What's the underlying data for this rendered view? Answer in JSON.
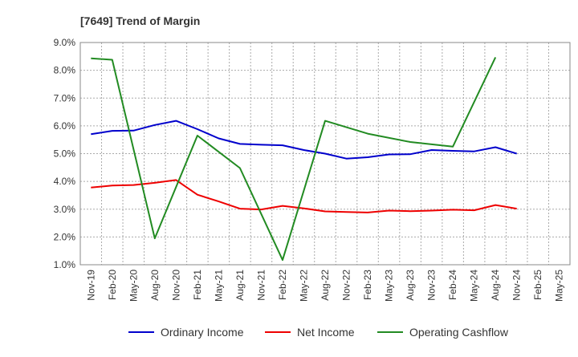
{
  "chart_data": {
    "type": "line",
    "title": "[7649]  Trend of Margin",
    "xlabel": "",
    "ylabel": "",
    "ylim": [
      1.0,
      9.0
    ],
    "yticks": [
      "1.0%",
      "2.0%",
      "3.0%",
      "4.0%",
      "5.0%",
      "6.0%",
      "7.0%",
      "8.0%",
      "9.0%"
    ],
    "categories": [
      "Nov-19",
      "Feb-20",
      "May-20",
      "Aug-20",
      "Nov-20",
      "Feb-21",
      "May-21",
      "Aug-21",
      "Nov-21",
      "Feb-22",
      "May-22",
      "Aug-22",
      "Nov-22",
      "Feb-23",
      "May-23",
      "Aug-23",
      "Nov-23",
      "Feb-24",
      "May-24",
      "Aug-24",
      "Nov-24",
      "Feb-25",
      "May-25"
    ],
    "grid": true,
    "legend_position": "bottom",
    "series": [
      {
        "name": "Ordinary Income",
        "color": "#0000cc",
        "values": [
          5.7,
          5.82,
          5.83,
          6.03,
          6.18,
          5.88,
          5.55,
          5.35,
          5.32,
          5.3,
          5.13,
          5.0,
          4.82,
          4.87,
          4.97,
          4.98,
          5.13,
          5.1,
          5.08,
          5.23,
          5.0,
          null,
          null
        ]
      },
      {
        "name": "Net Income",
        "color": "#ee0000",
        "values": [
          3.78,
          3.85,
          3.87,
          3.95,
          4.05,
          3.52,
          3.28,
          3.02,
          2.99,
          3.12,
          3.03,
          2.92,
          2.9,
          2.88,
          2.95,
          2.93,
          2.95,
          2.98,
          2.96,
          3.15,
          3.02,
          null,
          null
        ]
      },
      {
        "name": "Operating Cashflow",
        "color": "#228b22",
        "values": [
          8.43,
          8.38,
          null,
          1.95,
          null,
          5.65,
          null,
          4.48,
          null,
          1.17,
          null,
          6.18,
          null,
          5.72,
          null,
          5.42,
          null,
          5.25,
          null,
          8.47,
          null,
          null,
          null
        ]
      }
    ]
  }
}
